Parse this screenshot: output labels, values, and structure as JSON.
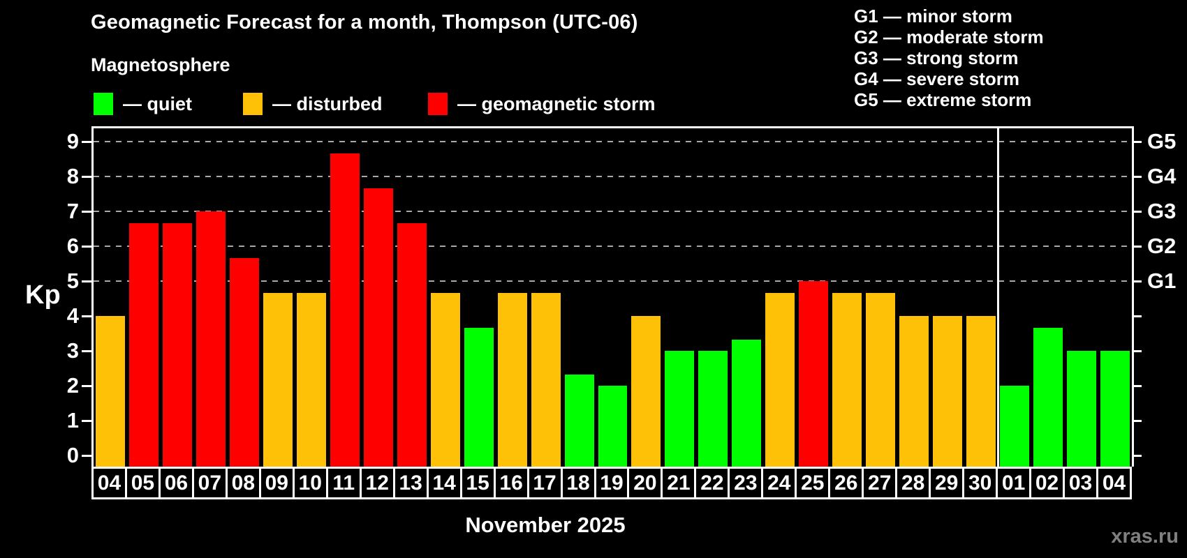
{
  "subtitle": "Magnetosphere",
  "legend": {
    "items": [
      {
        "name": "quiet",
        "label": "— quiet",
        "color": "#00ff00"
      },
      {
        "name": "disturbed",
        "label": "— disturbed",
        "color": "#ffc107"
      },
      {
        "name": "storm",
        "label": "— geomagnetic storm",
        "color": "#ff0000"
      }
    ]
  },
  "g_scale_legend": {
    "items": [
      "G1 — minor storm",
      "G2 — moderate storm",
      "G3 — strong storm",
      "G4 — severe storm",
      "G5 — extreme storm"
    ]
  },
  "chart_data": {
    "type": "bar",
    "title": "Geomagnetic Forecast for a month, Thompson (UTC-06)",
    "xlabel": "November 2025",
    "ylabel": "Kp",
    "ylim": [
      0,
      9.4
    ],
    "yticks": [
      0,
      1,
      2,
      3,
      4,
      5,
      6,
      7,
      8,
      9
    ],
    "gridlines_at_kp": [
      5,
      6,
      7,
      8,
      9
    ],
    "grid": "dashed horizontal at storm levels only",
    "legend_position": "top",
    "right_axis": {
      "labels": [
        {
          "kp": 5,
          "label": "G1"
        },
        {
          "kp": 6,
          "label": "G2"
        },
        {
          "kp": 7,
          "label": "G3"
        },
        {
          "kp": 8,
          "label": "G4"
        },
        {
          "kp": 9,
          "label": "G5"
        }
      ]
    },
    "month_separator_after_index": 26,
    "categories": [
      "04",
      "05",
      "06",
      "07",
      "08",
      "09",
      "10",
      "11",
      "12",
      "13",
      "14",
      "15",
      "16",
      "17",
      "18",
      "19",
      "20",
      "21",
      "22",
      "23",
      "24",
      "25",
      "26",
      "27",
      "28",
      "29",
      "30",
      "01",
      "02",
      "03",
      "04"
    ],
    "values": [
      4,
      6.67,
      6.67,
      7,
      5.67,
      4.67,
      4.67,
      8.67,
      7.67,
      6.67,
      4.67,
      3.67,
      4.67,
      4.67,
      2.33,
      2,
      4,
      3,
      3,
      3.33,
      4.67,
      5,
      4.67,
      4.67,
      4,
      4,
      4,
      2,
      3.67,
      3,
      3
    ],
    "statuses": [
      "disturbed",
      "storm",
      "storm",
      "storm",
      "storm",
      "disturbed",
      "disturbed",
      "storm",
      "storm",
      "storm",
      "disturbed",
      "quiet",
      "disturbed",
      "disturbed",
      "quiet",
      "quiet",
      "disturbed",
      "quiet",
      "quiet",
      "quiet",
      "disturbed",
      "storm",
      "disturbed",
      "disturbed",
      "disturbed",
      "disturbed",
      "disturbed",
      "quiet",
      "quiet",
      "quiet",
      "quiet"
    ]
  },
  "footer": {
    "watermark": "xras.ru"
  },
  "colors": {
    "background": "#000000",
    "axis": "#ffffff",
    "gridline": "#aaaaaa",
    "quiet": "#00ff00",
    "disturbed": "#ffc107",
    "storm": "#ff0000",
    "watermark": "#808080"
  }
}
